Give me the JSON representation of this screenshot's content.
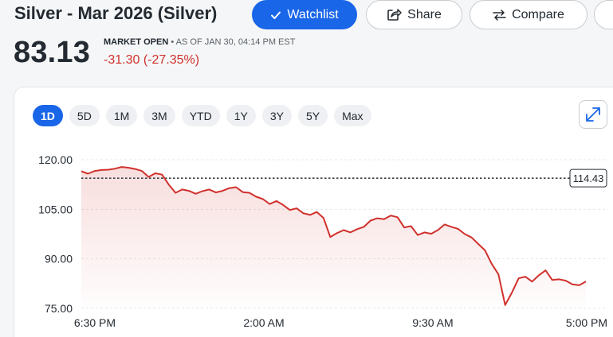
{
  "header": {
    "title": "Silver - Mar 2026 (Silver)",
    "watchlist_label": "Watchlist",
    "share_label": "Share",
    "compare_label": "Compare",
    "price": "83.13",
    "market_status": "MARKET OPEN",
    "as_of": "AS OF JAN 30, 04:14 PM EST",
    "change": "-31.30 (-27.35%)"
  },
  "ranges": [
    "1D",
    "5D",
    "1M",
    "3M",
    "YTD",
    "1Y",
    "3Y",
    "5Y",
    "Max"
  ],
  "active_range": "1D",
  "colors": {
    "accent": "#1a66e8",
    "negative": "#d0312d",
    "line": "#d0312d"
  },
  "chart_data": {
    "type": "area",
    "y_ticks": [
      "120.00",
      "105.00",
      "90.00",
      "75.00"
    ],
    "x_ticks": [
      "6:30 PM",
      "2:00 AM",
      "9:30 AM",
      "5:00 PM"
    ],
    "ylim": [
      75,
      120
    ],
    "previous_close": 114.43,
    "previous_close_label": "114.43",
    "grid": true,
    "values": [
      116.5,
      115.8,
      116.6,
      116.9,
      117.0,
      117.3,
      117.8,
      117.6,
      117.2,
      116.6,
      114.8,
      115.9,
      115.5,
      112.5,
      110.0,
      111.0,
      110.6,
      109.7,
      110.5,
      111.0,
      110.1,
      110.6,
      111.4,
      111.7,
      110.2,
      110.0,
      108.8,
      108.1,
      106.6,
      107.5,
      106.3,
      104.8,
      105.3,
      103.8,
      103.3,
      104.2,
      102.4,
      96.6,
      97.8,
      98.7,
      98.0,
      99.0,
      99.7,
      101.6,
      102.3,
      102.0,
      103.1,
      102.6,
      99.5,
      99.9,
      97.2,
      98.0,
      97.6,
      98.7,
      100.4,
      99.7,
      99.1,
      97.5,
      96.5,
      94.5,
      92.6,
      88.5,
      85.3,
      76.0,
      79.8,
      84.1,
      84.6,
      83.1,
      85.0,
      86.5,
      83.6,
      83.8,
      83.4,
      82.3,
      82.0,
      83.1
    ]
  }
}
